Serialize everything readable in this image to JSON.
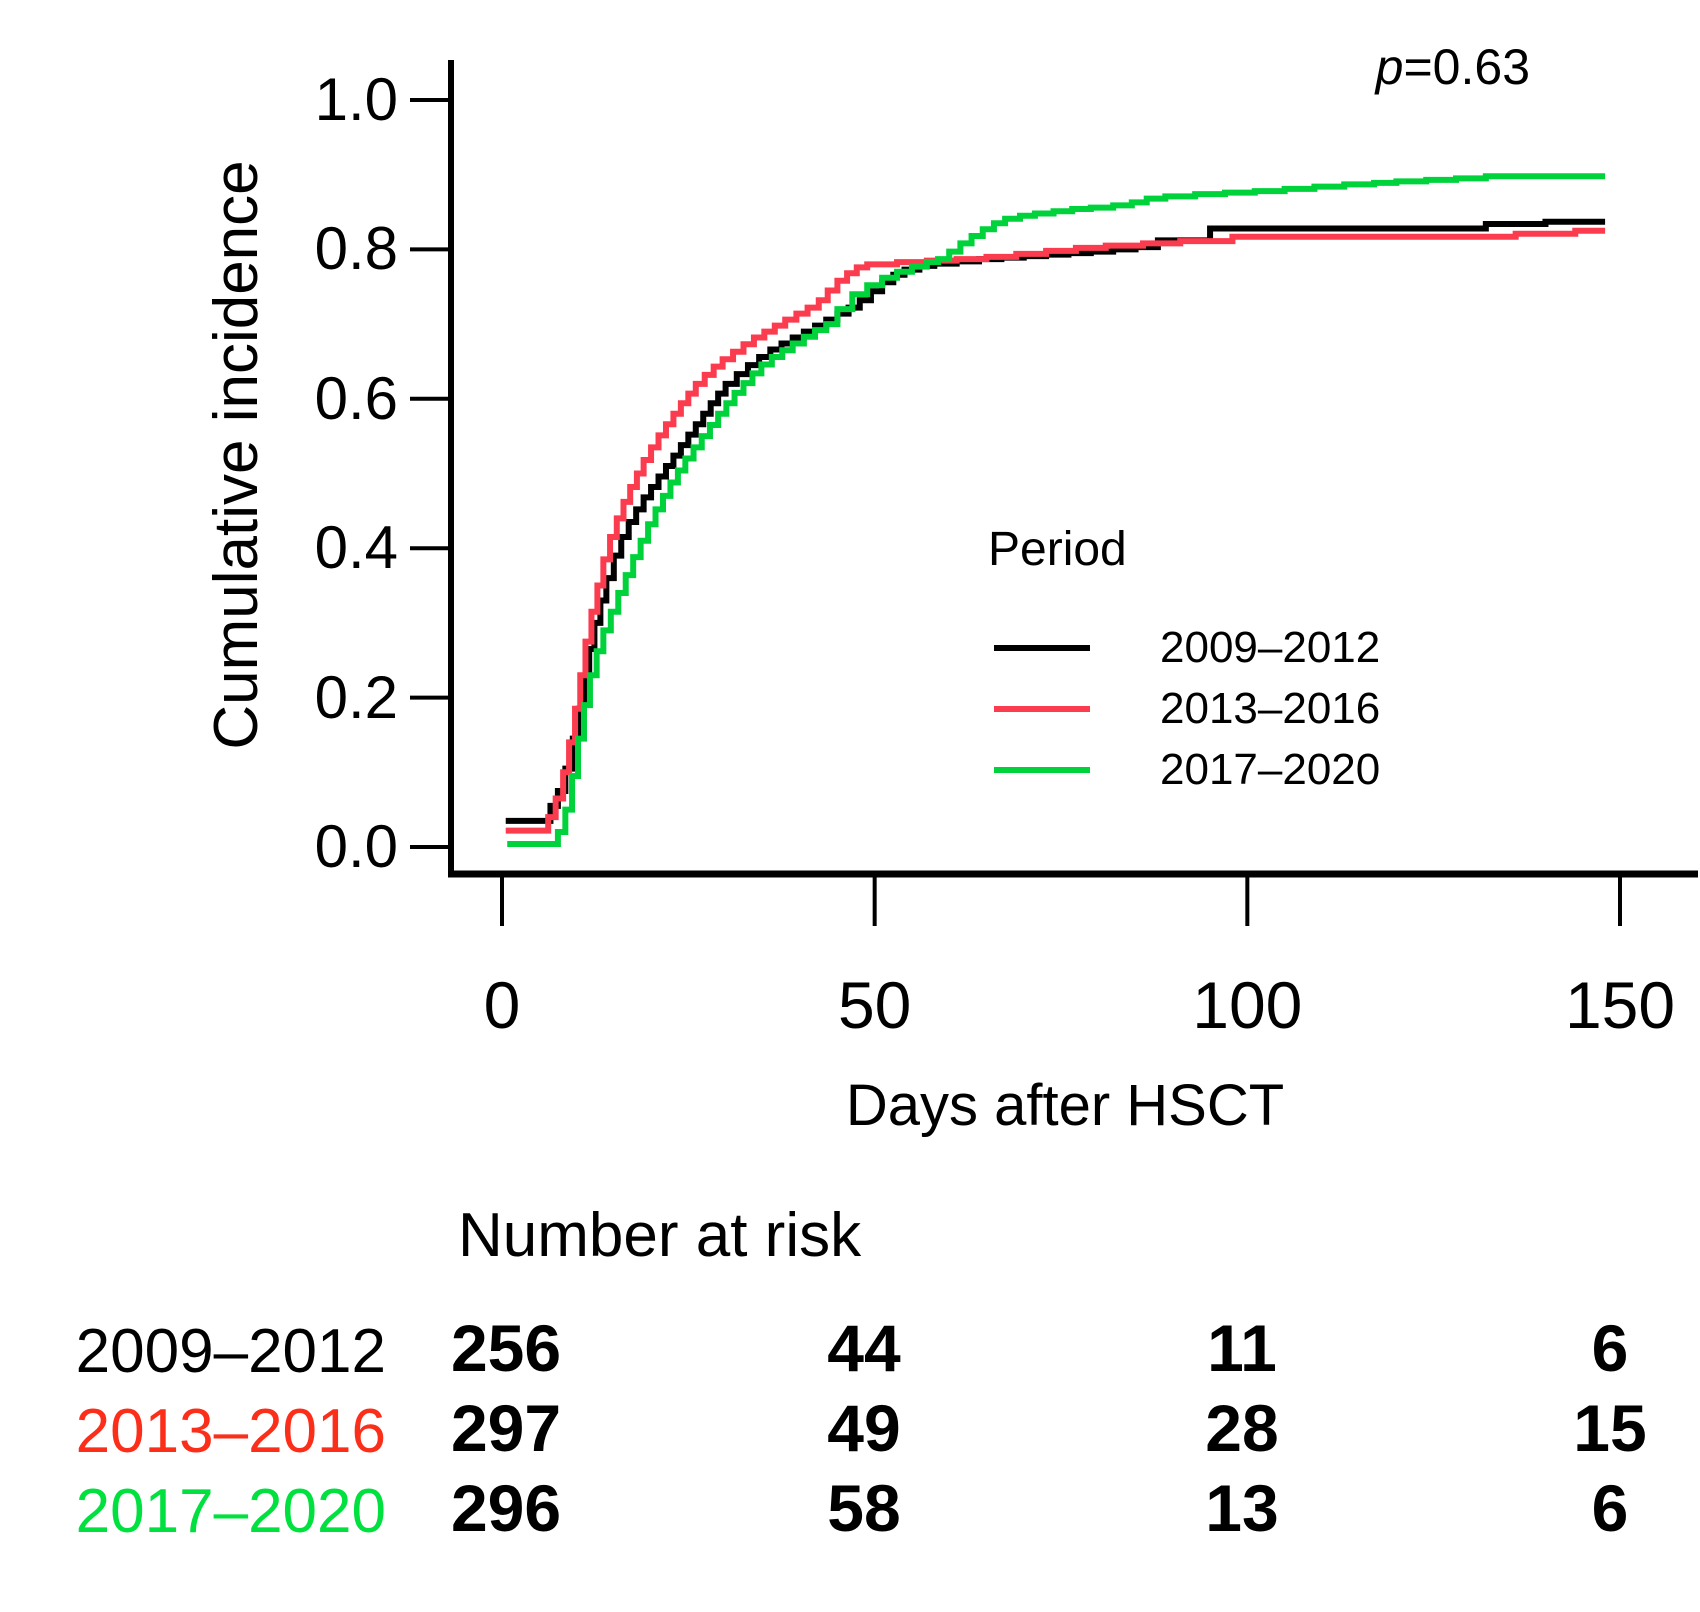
{
  "annotation": {
    "p_prefix": "p",
    "p_text": "=0.63"
  },
  "axes": {
    "xlabel": "Days after HSCT",
    "ylabel": "Cumulative incidence"
  },
  "legend": {
    "title": "Period"
  },
  "risk_table_title": "Number at risk",
  "chart_data": {
    "type": "line",
    "subtype": "step-cumulative-incidence",
    "title": "",
    "xlabel": "Days after HSCT",
    "ylabel": "Cumulative incidence",
    "annotation": "p=0.63",
    "xlim": [
      0,
      150
    ],
    "ylim": [
      0.0,
      1.0
    ],
    "xticks": [
      0,
      50,
      100,
      150
    ],
    "ytick_labels": [
      "0.0",
      "0.2",
      "0.4",
      "0.6",
      "0.8",
      "1.0"
    ],
    "grid": false,
    "legend_position": "center-right",
    "x_end": 148,
    "series": [
      {
        "name": "2009–2012",
        "color": "#000000",
        "points": [
          [
            0.5,
            0.035
          ],
          [
            6.5,
            0.055
          ],
          [
            7.5,
            0.075
          ],
          [
            8.5,
            0.105
          ],
          [
            9.5,
            0.145
          ],
          [
            10.3,
            0.185
          ],
          [
            11,
            0.225
          ],
          [
            11.7,
            0.265
          ],
          [
            12.4,
            0.3
          ],
          [
            13.2,
            0.33
          ],
          [
            14,
            0.36
          ],
          [
            15,
            0.39
          ],
          [
            16,
            0.415
          ],
          [
            17,
            0.435
          ],
          [
            18,
            0.452
          ],
          [
            19,
            0.468
          ],
          [
            20,
            0.482
          ],
          [
            21,
            0.496
          ],
          [
            22,
            0.51
          ],
          [
            23,
            0.524
          ],
          [
            24,
            0.538
          ],
          [
            25,
            0.552
          ],
          [
            26,
            0.566
          ],
          [
            27,
            0.58
          ],
          [
            28,
            0.594
          ],
          [
            29,
            0.607
          ],
          [
            30,
            0.62
          ],
          [
            31.5,
            0.633
          ],
          [
            33,
            0.645
          ],
          [
            34.5,
            0.656
          ],
          [
            36,
            0.666
          ],
          [
            37.5,
            0.674
          ],
          [
            39,
            0.682
          ],
          [
            40.5,
            0.69
          ],
          [
            42,
            0.698
          ],
          [
            43.5,
            0.706
          ],
          [
            45,
            0.714
          ],
          [
            46.5,
            0.722
          ],
          [
            48,
            0.732
          ],
          [
            49.5,
            0.744
          ],
          [
            51,
            0.756
          ],
          [
            52.5,
            0.766
          ],
          [
            54,
            0.773
          ],
          [
            56,
            0.778
          ],
          [
            58,
            0.781
          ],
          [
            61,
            0.784
          ],
          [
            64,
            0.787
          ],
          [
            67,
            0.789
          ],
          [
            70,
            0.791
          ],
          [
            73,
            0.793
          ],
          [
            76,
            0.795
          ],
          [
            79,
            0.797
          ],
          [
            82,
            0.8
          ],
          [
            85,
            0.803
          ],
          [
            88,
            0.812
          ],
          [
            95,
            0.828
          ],
          [
            132,
            0.834
          ],
          [
            140,
            0.837
          ]
        ]
      },
      {
        "name": "2013–2016",
        "color": "#fb3b4e",
        "points": [
          [
            0.5,
            0.022
          ],
          [
            6.2,
            0.04
          ],
          [
            7.2,
            0.065
          ],
          [
            8.2,
            0.1
          ],
          [
            9,
            0.14
          ],
          [
            9.8,
            0.185
          ],
          [
            10.5,
            0.23
          ],
          [
            11.2,
            0.275
          ],
          [
            12,
            0.315
          ],
          [
            12.8,
            0.35
          ],
          [
            13.6,
            0.385
          ],
          [
            14.5,
            0.415
          ],
          [
            15.4,
            0.44
          ],
          [
            16.3,
            0.462
          ],
          [
            17.2,
            0.482
          ],
          [
            18.1,
            0.5
          ],
          [
            19,
            0.518
          ],
          [
            20,
            0.535
          ],
          [
            21,
            0.551
          ],
          [
            22,
            0.566
          ],
          [
            23,
            0.58
          ],
          [
            24,
            0.594
          ],
          [
            25,
            0.607
          ],
          [
            26,
            0.62
          ],
          [
            27.2,
            0.632
          ],
          [
            28.4,
            0.643
          ],
          [
            29.6,
            0.653
          ],
          [
            31,
            0.663
          ],
          [
            32.4,
            0.673
          ],
          [
            33.8,
            0.682
          ],
          [
            35.2,
            0.69
          ],
          [
            36.6,
            0.698
          ],
          [
            38,
            0.706
          ],
          [
            39.5,
            0.714
          ],
          [
            41,
            0.722
          ],
          [
            42.5,
            0.732
          ],
          [
            43.7,
            0.745
          ],
          [
            45,
            0.758
          ],
          [
            46.3,
            0.768
          ],
          [
            47.6,
            0.776
          ],
          [
            49,
            0.78
          ],
          [
            53,
            0.783
          ],
          [
            57,
            0.785
          ],
          [
            61,
            0.787
          ],
          [
            65,
            0.79
          ],
          [
            69,
            0.794
          ],
          [
            73,
            0.798
          ],
          [
            77,
            0.802
          ],
          [
            81,
            0.805
          ],
          [
            86,
            0.808
          ],
          [
            91,
            0.811
          ],
          [
            98,
            0.817
          ],
          [
            136,
            0.821
          ],
          [
            144,
            0.825
          ]
        ]
      },
      {
        "name": "2017–2020",
        "color": "#00d23c",
        "points": [
          [
            0.7,
            0.004
          ],
          [
            7.5,
            0.02
          ],
          [
            8.5,
            0.05
          ],
          [
            9.4,
            0.095
          ],
          [
            10.2,
            0.145
          ],
          [
            11,
            0.19
          ],
          [
            11.8,
            0.23
          ],
          [
            12.7,
            0.262
          ],
          [
            13.6,
            0.29
          ],
          [
            14.6,
            0.315
          ],
          [
            15.6,
            0.34
          ],
          [
            16.6,
            0.364
          ],
          [
            17.6,
            0.388
          ],
          [
            18.6,
            0.41
          ],
          [
            19.6,
            0.432
          ],
          [
            20.6,
            0.452
          ],
          [
            21.6,
            0.47
          ],
          [
            22.6,
            0.488
          ],
          [
            23.6,
            0.504
          ],
          [
            24.6,
            0.52
          ],
          [
            25.7,
            0.535
          ],
          [
            26.8,
            0.55
          ],
          [
            27.9,
            0.565
          ],
          [
            29,
            0.58
          ],
          [
            30.1,
            0.594
          ],
          [
            31.2,
            0.608
          ],
          [
            32.4,
            0.621
          ],
          [
            33.6,
            0.634
          ],
          [
            34.8,
            0.646
          ],
          [
            36.2,
            0.656
          ],
          [
            37.6,
            0.665
          ],
          [
            39,
            0.674
          ],
          [
            40.5,
            0.683
          ],
          [
            42,
            0.692
          ],
          [
            43.5,
            0.7
          ],
          [
            45,
            0.72
          ],
          [
            47,
            0.74
          ],
          [
            49,
            0.752
          ],
          [
            51,
            0.762
          ],
          [
            53,
            0.77
          ],
          [
            55,
            0.777
          ],
          [
            57,
            0.783
          ],
          [
            58.5,
            0.787
          ],
          [
            60,
            0.797
          ],
          [
            61.5,
            0.808
          ],
          [
            63,
            0.818
          ],
          [
            64.5,
            0.827
          ],
          [
            66,
            0.835
          ],
          [
            67.5,
            0.841
          ],
          [
            69.5,
            0.845
          ],
          [
            71.5,
            0.848
          ],
          [
            74,
            0.851
          ],
          [
            76.5,
            0.854
          ],
          [
            79,
            0.856
          ],
          [
            82,
            0.859
          ],
          [
            84.5,
            0.863
          ],
          [
            86.5,
            0.868
          ],
          [
            89,
            0.871
          ],
          [
            93,
            0.874
          ],
          [
            97,
            0.876
          ],
          [
            101,
            0.878
          ],
          [
            105,
            0.881
          ],
          [
            109,
            0.884
          ],
          [
            113,
            0.887
          ],
          [
            117,
            0.889
          ],
          [
            120,
            0.891
          ],
          [
            124,
            0.893
          ],
          [
            128,
            0.895
          ],
          [
            132,
            0.898
          ]
        ]
      }
    ],
    "number_at_risk": {
      "title": "Number at risk",
      "timepoints": [
        0,
        50,
        100,
        150
      ],
      "rows": [
        {
          "label": "2009–2012",
          "color": "#000000",
          "values": [
            "256",
            "44",
            "11",
            "6"
          ]
        },
        {
          "label": "2013–2016",
          "color": "#fb2e1a",
          "values": [
            "297",
            "49",
            "28",
            "15"
          ]
        },
        {
          "label": "2017–2020",
          "color": "#00e03e",
          "values": [
            "296",
            "58",
            "13",
            "6"
          ]
        }
      ]
    }
  }
}
